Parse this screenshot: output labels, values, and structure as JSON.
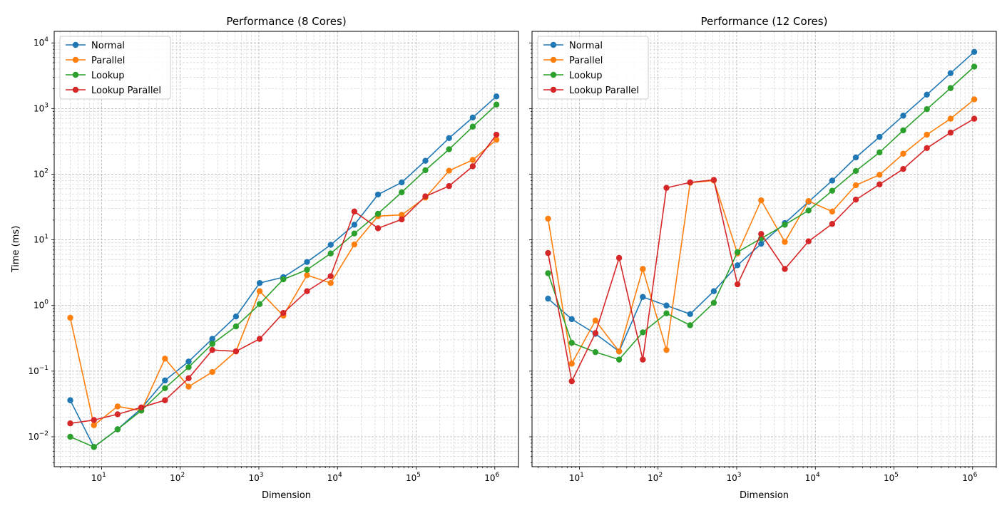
{
  "chart_data": [
    {
      "type": "line",
      "title": "Performance (8 Cores)",
      "xlabel": "Dimension",
      "ylabel": "Time (ms)",
      "xscale": "log",
      "yscale": "log",
      "xlim": [
        2.5,
        2000000
      ],
      "ylim": [
        0.0035,
        15000
      ],
      "grid": true,
      "legend_position": "top-left",
      "x": [
        4,
        8,
        16,
        32,
        64,
        128,
        256,
        512,
        1024,
        2048,
        4096,
        8192,
        16384,
        32768,
        65536,
        131072,
        262144,
        524288,
        1048576
      ],
      "series": [
        {
          "name": "Normal",
          "color": "#1f77b4",
          "values": [
            0.036,
            0.007,
            0.013,
            0.027,
            0.072,
            0.14,
            0.31,
            0.68,
            2.2,
            2.7,
            4.6,
            8.4,
            17,
            49,
            75,
            160,
            355,
            730,
            1530
          ]
        },
        {
          "name": "Parallel",
          "color": "#ff7f0e",
          "values": [
            0.65,
            0.015,
            0.029,
            0.025,
            0.155,
            0.058,
            0.097,
            0.2,
            1.65,
            0.7,
            2.9,
            2.2,
            8.5,
            23,
            24,
            44,
            113,
            165,
            335
          ]
        },
        {
          "name": "Lookup",
          "color": "#2ca02c",
          "values": [
            0.01,
            0.007,
            0.013,
            0.025,
            0.055,
            0.115,
            0.26,
            0.48,
            1.05,
            2.5,
            3.5,
            6.2,
            12.5,
            25,
            53,
            115,
            240,
            530,
            1150
          ]
        },
        {
          "name": "Lookup Parallel",
          "color": "#d62728",
          "values": [
            0.016,
            0.018,
            0.022,
            0.028,
            0.036,
            0.078,
            0.21,
            0.2,
            0.31,
            0.77,
            1.65,
            2.8,
            27,
            15,
            20.5,
            46,
            66,
            132,
            400
          ]
        }
      ],
      "x_ticks": [
        "10",
        "10",
        "10",
        "10",
        "10",
        "10"
      ],
      "x_tick_exps": [
        "1",
        "2",
        "3",
        "4",
        "5",
        "6"
      ],
      "y_ticks": [
        "10",
        "10",
        "10",
        "10",
        "10",
        "10",
        "10"
      ],
      "y_tick_exps": [
        "−2",
        "−1",
        "0",
        "1",
        "2",
        "3",
        "4"
      ]
    },
    {
      "type": "line",
      "title": "Performance (12 Cores)",
      "xlabel": "Dimension",
      "ylabel": "",
      "xscale": "log",
      "yscale": "log",
      "xlim": [
        2.5,
        2000000
      ],
      "ylim": [
        0.0035,
        15000
      ],
      "grid": true,
      "legend_position": "top-left",
      "x": [
        4,
        8,
        16,
        32,
        64,
        128,
        256,
        512,
        1024,
        2048,
        4096,
        8192,
        16384,
        32768,
        65536,
        131072,
        262144,
        524288,
        1048576
      ],
      "series": [
        {
          "name": "Normal",
          "color": "#1f77b4",
          "values": [
            1.27,
            0.62,
            0.37,
            0.2,
            1.35,
            1.0,
            0.74,
            1.65,
            4.1,
            8.7,
            18,
            38,
            80,
            180,
            370,
            780,
            1630,
            3460,
            7300
          ]
        },
        {
          "name": "Parallel",
          "color": "#ff7f0e",
          "values": [
            21,
            0.13,
            0.59,
            0.2,
            3.6,
            0.21,
            74,
            80,
            6.2,
            40,
            9.3,
            39,
            27,
            68,
            98,
            205,
            400,
            700,
            1380
          ]
        },
        {
          "name": "Lookup",
          "color": "#2ca02c",
          "values": [
            3.1,
            0.27,
            0.195,
            0.15,
            0.39,
            0.76,
            0.5,
            1.1,
            6.5,
            10.5,
            17,
            28,
            56,
            112,
            215,
            465,
            980,
            2050,
            4350
          ]
        },
        {
          "name": "Lookup Parallel",
          "color": "#d62728",
          "values": [
            6.3,
            0.07,
            0.38,
            5.3,
            0.15,
            62,
            75,
            82,
            2.1,
            12.3,
            3.6,
            9.5,
            17.5,
            41,
            70,
            120,
            250,
            430,
            700
          ]
        }
      ],
      "x_ticks": [
        "10",
        "10",
        "10",
        "10",
        "10",
        "10"
      ],
      "x_tick_exps": [
        "1",
        "2",
        "3",
        "4",
        "5",
        "6"
      ],
      "y_ticks": [],
      "y_tick_exps": []
    }
  ]
}
